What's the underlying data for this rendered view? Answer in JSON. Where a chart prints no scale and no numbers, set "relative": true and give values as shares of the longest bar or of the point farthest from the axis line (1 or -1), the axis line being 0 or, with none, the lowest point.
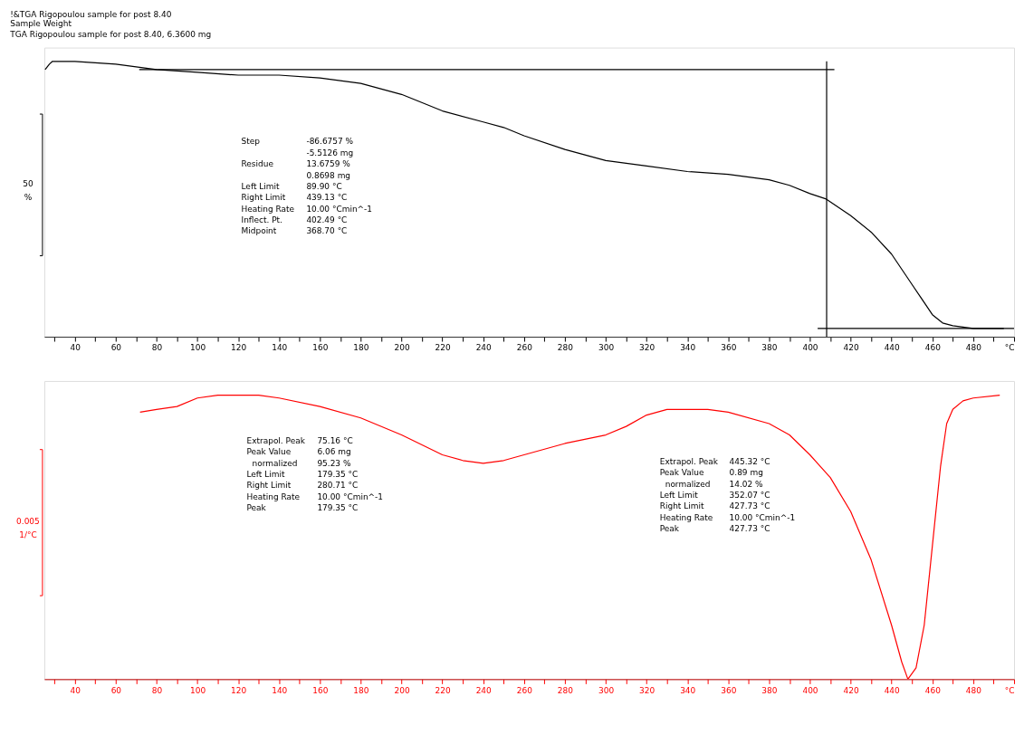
{
  "chart_data": [
    {
      "type": "line",
      "title": "!&TGA Rigopoulou sample for post 8.40",
      "subtitle": [
        "Sample Weight",
        "TGA Rigopoulou sample for post 8.40, 6.3600 mg"
      ],
      "ylabel": "50\n%",
      "relative": true,
      "xlim": [
        25,
        500
      ],
      "xticks": [
        {
          "value": 30,
          "label": null
        },
        40,
        {
          "value": 50,
          "label": null
        },
        60,
        {
          "value": 70,
          "label": null
        },
        80,
        {
          "value": 90,
          "label": null
        },
        100,
        {
          "value": 110,
          "label": null
        },
        120,
        {
          "value": 130,
          "label": null
        },
        140,
        {
          "value": 150,
          "label": null
        },
        160,
        {
          "value": 170,
          "label": null
        },
        180,
        {
          "value": 190,
          "label": null
        },
        200,
        {
          "value": 210,
          "label": null
        },
        220,
        {
          "value": 230,
          "label": null
        },
        240,
        {
          "value": 250,
          "label": null
        },
        260,
        {
          "value": 270,
          "label": null
        },
        280,
        {
          "value": 290,
          "label": null
        },
        300,
        {
          "value": 310,
          "label": null
        },
        320,
        {
          "value": 330,
          "label": null
        },
        340,
        {
          "value": 350,
          "label": null
        },
        360,
        {
          "value": 370,
          "label": null
        },
        380,
        {
          "value": 390,
          "label": null
        },
        400,
        {
          "value": 410,
          "label": null
        },
        420,
        {
          "value": 430,
          "label": null
        },
        440,
        {
          "value": 450,
          "label": null
        },
        460,
        {
          "value": 470,
          "label": null
        },
        480,
        {
          "value": 490,
          "label": null
        },
        {
          "value": 500,
          "label": "°C"
        }
      ],
      "series": [
        {
          "color": "#000000",
          "x": [
            25.4,
            27.5,
            29,
            35,
            40,
            60,
            70,
            80,
            100,
            120,
            140,
            160,
            180,
            200,
            220,
            240,
            250,
            260,
            280,
            300,
            320,
            340,
            360,
            380,
            390,
            400,
            408,
            420,
            430,
            440,
            450,
            460,
            465,
            470,
            480,
            495
          ],
          "values": [
            0.97,
            0.99,
            1.0,
            1.0,
            1.0,
            0.99,
            0.98,
            0.97,
            0.96,
            0.95,
            0.95,
            0.94,
            0.92,
            0.88,
            0.82,
            0.78,
            0.76,
            0.73,
            0.68,
            0.64,
            0.62,
            0.6,
            0.59,
            0.57,
            0.55,
            0.52,
            0.5,
            0.44,
            0.38,
            0.3,
            0.19,
            0.08,
            0.05,
            0.04,
            0.03,
            0.03
          ]
        },
        {
          "type": "line",
          "color": "#000000",
          "x": [
            71.5,
            412
          ],
          "values": [
            0.97,
            0.97
          ]
        },
        {
          "type": "line",
          "color": "#000000",
          "x": [
            408.2,
            408.2
          ],
          "values": [
            1.0,
            0.0
          ]
        },
        {
          "type": "line",
          "color": "#000000",
          "x": [
            403.8,
            500
          ],
          "values": [
            0.03,
            0.03
          ]
        }
      ],
      "annotations": [
        "Step\n\nResidue\n\nLeft Limit\nRight Limit\nHeating Rate\nInflect. Pt.\nMidpoint",
        "-86.6757 %\n-5.5126 mg\n13.6759 %\n0.8698 mg\n89.90 °C\n439.13 °C\n10.00 °Cmin^-1\n402.49 °C\n368.70 °C"
      ]
    },
    {
      "type": "line",
      "ylabel": "0.005\n1/°C",
      "relative": true,
      "xlim": [
        25,
        500
      ],
      "xticks": [
        {
          "value": 30,
          "label": null
        },
        40,
        {
          "value": 50,
          "label": null
        },
        60,
        {
          "value": 70,
          "label": null
        },
        80,
        {
          "value": 90,
          "label": null
        },
        100,
        {
          "value": 110,
          "label": null
        },
        120,
        {
          "value": 130,
          "label": null
        },
        140,
        {
          "value": 150,
          "label": null
        },
        160,
        {
          "value": 170,
          "label": null
        },
        180,
        {
          "value": 190,
          "label": null
        },
        200,
        {
          "value": 210,
          "label": null
        },
        220,
        {
          "value": 230,
          "label": null
        },
        240,
        {
          "value": 250,
          "label": null
        },
        260,
        {
          "value": 270,
          "label": null
        },
        280,
        {
          "value": 290,
          "label": null
        },
        300,
        {
          "value": 310,
          "label": null
        },
        320,
        {
          "value": 330,
          "label": null
        },
        340,
        {
          "value": 350,
          "label": null
        },
        360,
        {
          "value": 370,
          "label": null
        },
        380,
        {
          "value": 390,
          "label": null
        },
        400,
        {
          "value": 410,
          "label": null
        },
        420,
        {
          "value": 430,
          "label": null
        },
        440,
        {
          "value": 450,
          "label": null
        },
        460,
        {
          "value": 470,
          "label": null
        },
        480,
        {
          "value": 490,
          "label": null
        },
        {
          "value": 500,
          "label": "°C"
        }
      ],
      "series": [
        {
          "color": "#ff0000",
          "x": [
            71.9,
            80,
            90,
            100,
            110,
            120,
            130,
            140,
            160,
            180,
            200,
            220,
            230,
            240,
            250,
            260,
            280,
            300,
            310,
            320,
            330,
            340,
            350,
            360,
            380,
            390,
            400,
            410,
            420,
            430,
            440,
            445,
            448,
            452,
            456,
            460,
            464,
            467,
            470,
            475,
            480,
            493
          ],
          "values": [
            0.94,
            0.95,
            0.96,
            0.99,
            1.0,
            1.0,
            1.0,
            0.99,
            0.96,
            0.92,
            0.86,
            0.79,
            0.77,
            0.76,
            0.77,
            0.79,
            0.83,
            0.86,
            0.89,
            0.93,
            0.95,
            0.95,
            0.95,
            0.94,
            0.9,
            0.86,
            0.79,
            0.71,
            0.59,
            0.42,
            0.19,
            0.06,
            0.0,
            0.04,
            0.19,
            0.47,
            0.75,
            0.9,
            0.95,
            0.98,
            0.99,
            1.0
          ]
        }
      ],
      "annotations": [
        "Extrapol. Peak\nPeak Value\n  normalized\nLeft Limit\nRight Limit\nHeating Rate\nPeak",
        "75.16 °C\n6.06 mg\n95.23 %\n179.35 °C\n280.71 °C\n10.00 °Cmin^-1\n179.35 °C",
        "Extrapol. Peak\nPeak Value\n  normalized\nLeft Limit\nRight Limit\nHeating Rate\nPeak",
        "445.32 °C\n0.89 mg\n14.02 %\n352.07 °C\n427.73 °C\n10.00 °Cmin^-1\n427.73 °C"
      ]
    }
  ]
}
